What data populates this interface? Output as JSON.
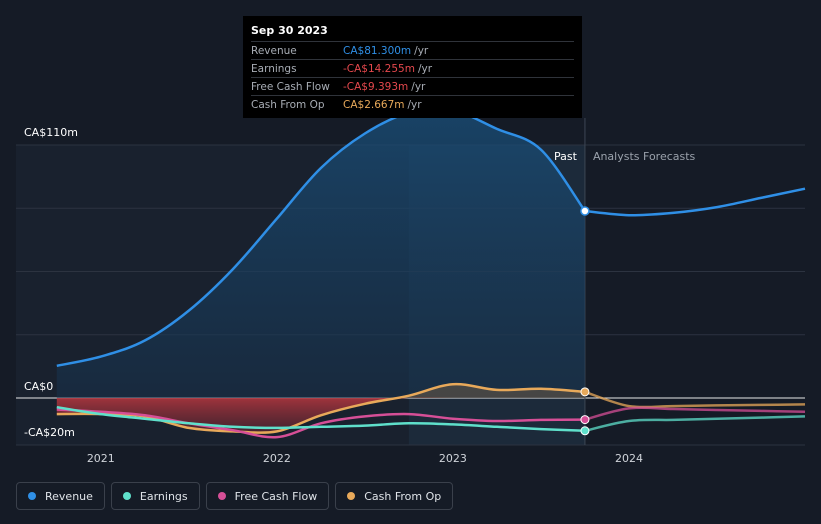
{
  "chart_data": {
    "type": "area",
    "y_axis_labels": {
      "top": "CA$110m",
      "zero": "CA$0",
      "bottom": "-CA$20m"
    },
    "ylim": [
      -20,
      110
    ],
    "x_ticks": [
      {
        "label": "2021",
        "value": 2021.0
      },
      {
        "label": "2022",
        "value": 2022.0
      },
      {
        "label": "2023",
        "value": 2023.0
      },
      {
        "label": "2024",
        "value": 2024.0
      }
    ],
    "xlim": [
      2020.7,
      2025.0
    ],
    "divider_x": 2023.75,
    "past_label": "Past",
    "forecast_label": "Analysts Forecasts",
    "series": [
      {
        "name": "Revenue",
        "color": "#2f8fe6",
        "past": [
          [
            2020.75,
            14
          ],
          [
            2021.0,
            18
          ],
          [
            2021.25,
            25
          ],
          [
            2021.5,
            38
          ],
          [
            2021.75,
            56
          ],
          [
            2022.0,
            78
          ],
          [
            2022.25,
            100
          ],
          [
            2022.5,
            115
          ],
          [
            2022.75,
            124
          ],
          [
            2023.0,
            125
          ],
          [
            2023.25,
            117
          ],
          [
            2023.5,
            108
          ],
          [
            2023.75,
            81.3
          ]
        ],
        "forecast": [
          [
            2023.75,
            81.3
          ],
          [
            2024.0,
            79.5
          ],
          [
            2024.25,
            80.5
          ],
          [
            2024.5,
            83
          ],
          [
            2024.75,
            87
          ],
          [
            2025.0,
            91
          ]
        ]
      },
      {
        "name": "Earnings",
        "color": "#5fe0cb",
        "past": [
          [
            2020.75,
            -4
          ],
          [
            2021.0,
            -7
          ],
          [
            2021.25,
            -9
          ],
          [
            2021.5,
            -11
          ],
          [
            2021.75,
            -12.5
          ],
          [
            2022.0,
            -13
          ],
          [
            2022.25,
            -12.5
          ],
          [
            2022.5,
            -12
          ],
          [
            2022.75,
            -11
          ],
          [
            2023.0,
            -11.5
          ],
          [
            2023.25,
            -12.5
          ],
          [
            2023.5,
            -13.5
          ],
          [
            2023.75,
            -14.255
          ]
        ],
        "forecast": [
          [
            2023.75,
            -14.255
          ],
          [
            2024.0,
            -10
          ],
          [
            2024.25,
            -9.5
          ],
          [
            2024.5,
            -9
          ],
          [
            2024.75,
            -8.5
          ],
          [
            2025.0,
            -8
          ]
        ]
      },
      {
        "name": "Free Cash Flow",
        "color": "#d64f97",
        "past": [
          [
            2020.75,
            -5
          ],
          [
            2021.0,
            -6
          ],
          [
            2021.25,
            -7.5
          ],
          [
            2021.5,
            -11
          ],
          [
            2021.75,
            -14
          ],
          [
            2022.0,
            -17
          ],
          [
            2022.25,
            -11
          ],
          [
            2022.5,
            -8
          ],
          [
            2022.75,
            -7
          ],
          [
            2023.0,
            -9
          ],
          [
            2023.25,
            -10
          ],
          [
            2023.5,
            -9.5
          ],
          [
            2023.75,
            -9.393
          ]
        ],
        "forecast": [
          [
            2023.75,
            -9.393
          ],
          [
            2024.0,
            -4.5
          ],
          [
            2024.25,
            -4.8
          ],
          [
            2024.5,
            -5.2
          ],
          [
            2024.75,
            -5.6
          ],
          [
            2025.0,
            -6
          ]
        ]
      },
      {
        "name": "Cash From Op",
        "color": "#e8a95a",
        "past": [
          [
            2020.75,
            -7
          ],
          [
            2021.0,
            -7
          ],
          [
            2021.25,
            -8
          ],
          [
            2021.5,
            -13
          ],
          [
            2021.75,
            -14.5
          ],
          [
            2022.0,
            -14.5
          ],
          [
            2022.25,
            -7.5
          ],
          [
            2022.5,
            -2.5
          ],
          [
            2022.75,
            1
          ],
          [
            2023.0,
            6
          ],
          [
            2023.25,
            3.5
          ],
          [
            2023.5,
            4
          ],
          [
            2023.75,
            2.667
          ]
        ],
        "forecast": [
          [
            2023.75,
            2.667
          ],
          [
            2024.0,
            -3.5
          ],
          [
            2024.25,
            -3.5
          ],
          [
            2024.5,
            -3.2
          ],
          [
            2024.75,
            -3
          ],
          [
            2025.0,
            -2.8
          ]
        ]
      }
    ]
  },
  "tooltip": {
    "date": "Sep 30 2023",
    "rows": [
      {
        "label": "Revenue",
        "value": "CA$81.300m",
        "unit": "/yr",
        "color": "#2f8fe6"
      },
      {
        "label": "Earnings",
        "value": "-CA$14.255m",
        "unit": "/yr",
        "color": "#e5484d"
      },
      {
        "label": "Free Cash Flow",
        "value": "-CA$9.393m",
        "unit": "/yr",
        "color": "#e5484d"
      },
      {
        "label": "Cash From Op",
        "value": "CA$2.667m",
        "unit": "/yr",
        "color": "#e8a95a"
      }
    ]
  },
  "legend": [
    {
      "label": "Revenue",
      "color": "#2f8fe6"
    },
    {
      "label": "Earnings",
      "color": "#5fe0cb"
    },
    {
      "label": "Free Cash Flow",
      "color": "#d64f97"
    },
    {
      "label": "Cash From Op",
      "color": "#e8a95a"
    }
  ]
}
